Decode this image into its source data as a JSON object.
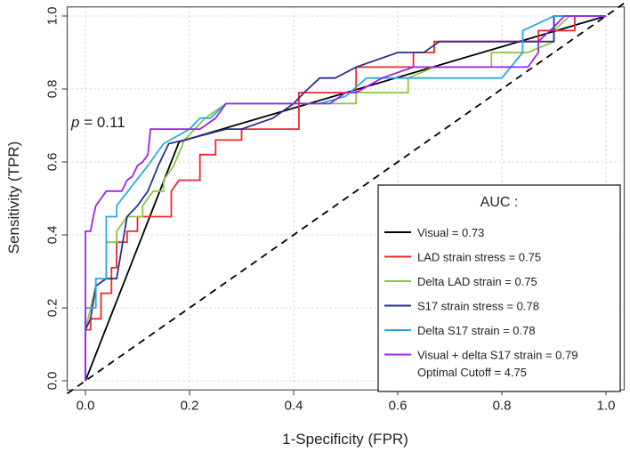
{
  "chart_data": {
    "type": "line",
    "xlabel": "1-Specificity (FPR)",
    "ylabel": "Sensitivity (TPR)",
    "xlim": [
      -0.035,
      1.035
    ],
    "ylim": [
      -0.025,
      1.025
    ],
    "x_ticks": [
      "0.0",
      "0.2",
      "0.4",
      "0.6",
      "0.8",
      "1.0"
    ],
    "y_ticks": [
      "0.0",
      "0.2",
      "0.4",
      "0.6",
      "0.8",
      "1.0"
    ],
    "grid": true,
    "annotation": {
      "p_label": "p",
      "p_value": " = 0.11"
    },
    "legend": {
      "position": "bottom-right",
      "title": "AUC :",
      "extra_line": "Optimal Cutoff = 4.75"
    },
    "reference_line": {
      "name": "chance",
      "points": [
        [
          0,
          0
        ],
        [
          1,
          1
        ]
      ],
      "color": "#000000",
      "dashed": true
    },
    "series": [
      {
        "name": "Visual = 0.73",
        "color": "#000000",
        "points": [
          [
            0,
            0
          ],
          [
            0.18,
            0.655
          ],
          [
            1,
            1
          ]
        ]
      },
      {
        "name": "LAD strain stress = 0.75",
        "color": "#f02828",
        "points": [
          [
            0,
            0
          ],
          [
            0,
            0.14
          ],
          [
            0.01,
            0.14
          ],
          [
            0.01,
            0.17
          ],
          [
            0.03,
            0.17
          ],
          [
            0.03,
            0.24
          ],
          [
            0.05,
            0.24
          ],
          [
            0.05,
            0.31
          ],
          [
            0.06,
            0.31
          ],
          [
            0.06,
            0.38
          ],
          [
            0.08,
            0.38
          ],
          [
            0.08,
            0.41
          ],
          [
            0.1,
            0.41
          ],
          [
            0.1,
            0.45
          ],
          [
            0.165,
            0.45
          ],
          [
            0.165,
            0.52
          ],
          [
            0.18,
            0.55
          ],
          [
            0.22,
            0.55
          ],
          [
            0.22,
            0.62
          ],
          [
            0.25,
            0.62
          ],
          [
            0.25,
            0.66
          ],
          [
            0.3,
            0.66
          ],
          [
            0.3,
            0.69
          ],
          [
            0.41,
            0.69
          ],
          [
            0.41,
            0.79
          ],
          [
            0.52,
            0.79
          ],
          [
            0.52,
            0.86
          ],
          [
            0.63,
            0.86
          ],
          [
            0.63,
            0.9
          ],
          [
            0.67,
            0.9
          ],
          [
            0.67,
            0.93
          ],
          [
            0.87,
            0.93
          ],
          [
            0.87,
            0.96
          ],
          [
            0.94,
            0.96
          ],
          [
            0.94,
            1
          ],
          [
            1,
            1
          ]
        ]
      },
      {
        "name": "Delta LAD strain = 0.75",
        "color": "#8cc63f",
        "points": [
          [
            0,
            0
          ],
          [
            0,
            0.14
          ],
          [
            0.02,
            0.26
          ],
          [
            0.04,
            0.28
          ],
          [
            0.04,
            0.38
          ],
          [
            0.06,
            0.38
          ],
          [
            0.06,
            0.41
          ],
          [
            0.08,
            0.45
          ],
          [
            0.11,
            0.45
          ],
          [
            0.11,
            0.48
          ],
          [
            0.13,
            0.52
          ],
          [
            0.15,
            0.52
          ],
          [
            0.15,
            0.55
          ],
          [
            0.17,
            0.59
          ],
          [
            0.19,
            0.66
          ],
          [
            0.21,
            0.69
          ],
          [
            0.23,
            0.72
          ],
          [
            0.27,
            0.76
          ],
          [
            0.52,
            0.76
          ],
          [
            0.52,
            0.79
          ],
          [
            0.62,
            0.79
          ],
          [
            0.62,
            0.83
          ],
          [
            0.67,
            0.86
          ],
          [
            0.78,
            0.86
          ],
          [
            0.78,
            0.9
          ],
          [
            0.85,
            0.9
          ],
          [
            0.9,
            0.93
          ],
          [
            0.9,
            0.96
          ],
          [
            0.93,
            1
          ],
          [
            1,
            1
          ]
        ]
      },
      {
        "name": "S17 strain stress = 0.78",
        "color": "#2b2f8c",
        "points": [
          [
            0,
            0
          ],
          [
            0,
            0.14
          ],
          [
            0.01,
            0.17
          ],
          [
            0.02,
            0.26
          ],
          [
            0.04,
            0.28
          ],
          [
            0.06,
            0.28
          ],
          [
            0.08,
            0.45
          ],
          [
            0.1,
            0.48
          ],
          [
            0.12,
            0.52
          ],
          [
            0.14,
            0.59
          ],
          [
            0.16,
            0.65
          ],
          [
            0.19,
            0.66
          ],
          [
            0.27,
            0.69
          ],
          [
            0.3,
            0.69
          ],
          [
            0.36,
            0.72
          ],
          [
            0.4,
            0.76
          ],
          [
            0.42,
            0.79
          ],
          [
            0.45,
            0.83
          ],
          [
            0.48,
            0.83
          ],
          [
            0.52,
            0.86
          ],
          [
            0.6,
            0.9
          ],
          [
            0.65,
            0.9
          ],
          [
            0.68,
            0.93
          ],
          [
            0.9,
            0.93
          ],
          [
            0.9,
            1
          ],
          [
            1,
            1
          ]
        ]
      },
      {
        "name": "Delta S17 strain = 0.78",
        "color": "#29abe2",
        "points": [
          [
            0,
            0
          ],
          [
            0,
            0.2
          ],
          [
            0.02,
            0.2
          ],
          [
            0.02,
            0.28
          ],
          [
            0.04,
            0.28
          ],
          [
            0.04,
            0.45
          ],
          [
            0.06,
            0.45
          ],
          [
            0.06,
            0.48
          ],
          [
            0.12,
            0.59
          ],
          [
            0.15,
            0.65
          ],
          [
            0.2,
            0.69
          ],
          [
            0.22,
            0.72
          ],
          [
            0.24,
            0.72
          ],
          [
            0.27,
            0.76
          ],
          [
            0.45,
            0.76
          ],
          [
            0.5,
            0.78
          ],
          [
            0.54,
            0.83
          ],
          [
            0.8,
            0.83
          ],
          [
            0.84,
            0.9
          ],
          [
            0.84,
            0.96
          ],
          [
            0.9,
            1
          ],
          [
            1,
            1
          ]
        ]
      },
      {
        "name": "Visual + delta S17 strain = 0.79",
        "color": "#a020f0",
        "points": [
          [
            0,
            0
          ],
          [
            0,
            0.41
          ],
          [
            0.01,
            0.41
          ],
          [
            0.015,
            0.45
          ],
          [
            0.02,
            0.48
          ],
          [
            0.04,
            0.52
          ],
          [
            0.07,
            0.52
          ],
          [
            0.08,
            0.55
          ],
          [
            0.09,
            0.56
          ],
          [
            0.1,
            0.59
          ],
          [
            0.11,
            0.6
          ],
          [
            0.12,
            0.62
          ],
          [
            0.125,
            0.69
          ],
          [
            0.22,
            0.69
          ],
          [
            0.25,
            0.72
          ],
          [
            0.27,
            0.76
          ],
          [
            0.47,
            0.76
          ],
          [
            0.5,
            0.79
          ],
          [
            0.52,
            0.79
          ],
          [
            0.57,
            0.83
          ],
          [
            0.63,
            0.86
          ],
          [
            0.85,
            0.86
          ],
          [
            0.87,
            0.9
          ],
          [
            0.87,
            0.93
          ],
          [
            0.9,
            0.97
          ],
          [
            0.92,
            1
          ],
          [
            1,
            1
          ]
        ]
      }
    ]
  }
}
